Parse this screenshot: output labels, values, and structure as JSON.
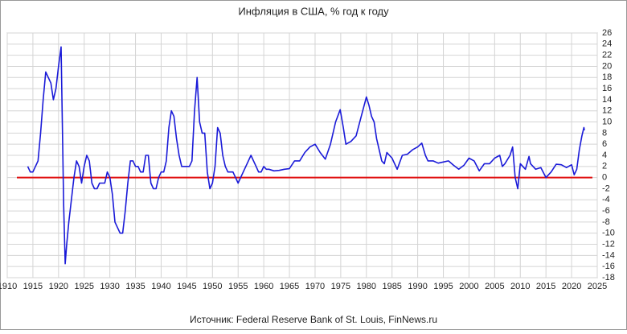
{
  "chart_data": {
    "type": "line",
    "title": "Инфляция в США, % год к году",
    "source": "Источник: Federal Reserve Bank of St. Louis, FinNews.ru",
    "color": "#1a1ad8",
    "reference_line": {
      "value": 0,
      "color": "#e01010"
    },
    "grid": true,
    "xlim": [
      1910,
      2025
    ],
    "xticks": [
      1910,
      1915,
      1920,
      1925,
      1930,
      1935,
      1940,
      1945,
      1950,
      1955,
      1960,
      1965,
      1970,
      1975,
      1980,
      1985,
      1990,
      1995,
      2000,
      2005,
      2010,
      2015,
      2020,
      2025
    ],
    "ylim": [
      -18,
      26
    ],
    "yticks": [
      -18,
      -16,
      -14,
      -12,
      -10,
      -8,
      -6,
      -4,
      -2,
      0,
      2,
      4,
      6,
      8,
      10,
      12,
      14,
      16,
      18,
      20,
      22,
      24,
      26
    ],
    "x": [
      1914,
      1914.5,
      1915,
      1915.5,
      1916,
      1916.5,
      1917,
      1917.5,
      1918,
      1918.5,
      1919,
      1919.5,
      1920,
      1920.5,
      1921,
      1921.3,
      1921.6,
      1922,
      1922.5,
      1923,
      1923.5,
      1924,
      1924.5,
      1925,
      1925.5,
      1926,
      1926.5,
      1927,
      1927.5,
      1928,
      1928.5,
      1929,
      1929.5,
      1930,
      1930.5,
      1931,
      1931.5,
      1932,
      1932.5,
      1933,
      1933.5,
      1934,
      1934.5,
      1935,
      1935.5,
      1936,
      1936.5,
      1937,
      1937.5,
      1938,
      1938.5,
      1939,
      1939.5,
      1940,
      1940.5,
      1941,
      1941.5,
      1942,
      1942.5,
      1943,
      1943.5,
      1944,
      1944.5,
      1945,
      1945.5,
      1946,
      1946.5,
      1947,
      1947.5,
      1948,
      1948.5,
      1949,
      1949.5,
      1950,
      1950.5,
      1951,
      1951.5,
      1952,
      1952.5,
      1953,
      1953.5,
      1954,
      1954.5,
      1955,
      1955.5,
      1956,
      1956.5,
      1957,
      1957.5,
      1958,
      1958.5,
      1959,
      1959.5,
      1960,
      1960.5,
      1961,
      1962,
      1963,
      1964,
      1965,
      1966,
      1967,
      1968,
      1969,
      1970,
      1971,
      1972,
      1973,
      1974,
      1974.9,
      1975.5,
      1976,
      1977,
      1978,
      1979,
      1980,
      1980.5,
      1981,
      1981.5,
      1982,
      1982.5,
      1983,
      1983.5,
      1984,
      1985,
      1986,
      1987,
      1988,
      1989,
      1990,
      1990.8,
      1991.5,
      1992,
      1993,
      1994,
      1995,
      1996,
      1997,
      1998,
      1999,
      2000,
      2001,
      2002,
      2003,
      2004,
      2005,
      2006,
      2006.5,
      2007,
      2008,
      2008.5,
      2009,
      2009.5,
      2010,
      2011,
      2011.7,
      2012,
      2013,
      2014,
      2015,
      2016,
      2017,
      2018,
      2019,
      2020,
      2020.5,
      2021,
      2021.5,
      2022,
      2022.4,
      2022.5
    ],
    "values": [
      2,
      1,
      1,
      2,
      3,
      8,
      14,
      19,
      18,
      17,
      14,
      16,
      20,
      23.5,
      -5,
      -15.5,
      -12,
      -8,
      -4,
      0,
      3,
      2,
      -1,
      2,
      4,
      3,
      -1,
      -2,
      -2,
      -1,
      -1,
      -1,
      1,
      0,
      -3,
      -8,
      -9,
      -10,
      -10,
      -6,
      -1,
      3,
      3,
      2,
      2,
      1,
      1,
      4,
      4,
      -1,
      -2,
      -2,
      0,
      1,
      1,
      3,
      9,
      12,
      11,
      7,
      4,
      2,
      2,
      2,
      2,
      3,
      12,
      18,
      10,
      8,
      8,
      1,
      -2,
      -1,
      2,
      9,
      8,
      4,
      2,
      1,
      1,
      1,
      0,
      -1,
      0,
      1,
      2,
      3,
      4,
      3,
      2,
      1,
      1,
      2,
      1.5,
      1.5,
      1.2,
      1.3,
      1.5,
      1.6,
      3,
      3,
      4.5,
      5.5,
      6,
      4.5,
      3.3,
      6,
      10,
      12.2,
      9,
      6,
      6.5,
      7.5,
      11,
      14.5,
      13,
      11,
      10,
      7,
      5,
      3,
      2.5,
      4.5,
      3.5,
      1.5,
      4,
      4.2,
      5,
      5.5,
      6.2,
      4,
      3,
      3,
      2.6,
      2.8,
      3,
      2.2,
      1.5,
      2.2,
      3.5,
      3,
      1.2,
      2.5,
      2.5,
      3.5,
      4,
      2,
      2.5,
      4,
      5.5,
      0,
      -2,
      2.5,
      1.5,
      3.8,
      2.5,
      1.5,
      1.8,
      0,
      1,
      2.4,
      2.3,
      1.8,
      2.3,
      0.5,
      1.5,
      5,
      7.5,
      9,
      8.5
    ]
  }
}
